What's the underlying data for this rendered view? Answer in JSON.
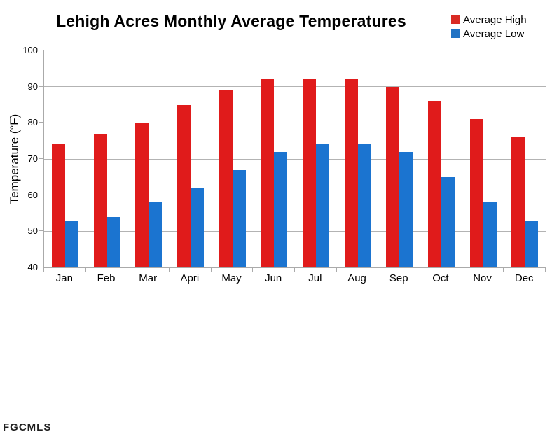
{
  "title": "Lehigh Acres Monthly Average Temperatures",
  "watermark": "FGCMLS",
  "legend": [
    {
      "label": "Average High",
      "color": "#d92b24"
    },
    {
      "label": "Average Low",
      "color": "#2173c4"
    }
  ],
  "colors": {
    "high_bar": "#e01b1b",
    "low_bar": "#1b74d0",
    "gridline": "#b3b3b3",
    "axis": "#aaaaaa",
    "text": "#000000"
  },
  "chart_data": {
    "type": "bar",
    "title": "Lehigh Acres Monthly Average Temperatures",
    "categories": [
      "Jan",
      "Feb",
      "Mar",
      "Apri",
      "May",
      "Jun",
      "Jul",
      "Aug",
      "Sep",
      "Oct",
      "Nov",
      "Dec"
    ],
    "series": [
      {
        "name": "Average High",
        "color": "#e01b1b",
        "values": [
          74,
          77,
          80,
          85,
          89,
          92,
          92,
          92,
          90,
          86,
          81,
          76
        ]
      },
      {
        "name": "Average Low",
        "color": "#1b74d0",
        "values": [
          53,
          54,
          58,
          62,
          67,
          72,
          74,
          74,
          72,
          65,
          58,
          53
        ]
      }
    ],
    "xlabel": "",
    "ylabel": "Temperature (°F)",
    "ylim": [
      40,
      100
    ],
    "yticks": [
      40,
      50,
      60,
      70,
      80,
      90,
      100
    ],
    "grid": true,
    "legend_position": "top-right"
  }
}
